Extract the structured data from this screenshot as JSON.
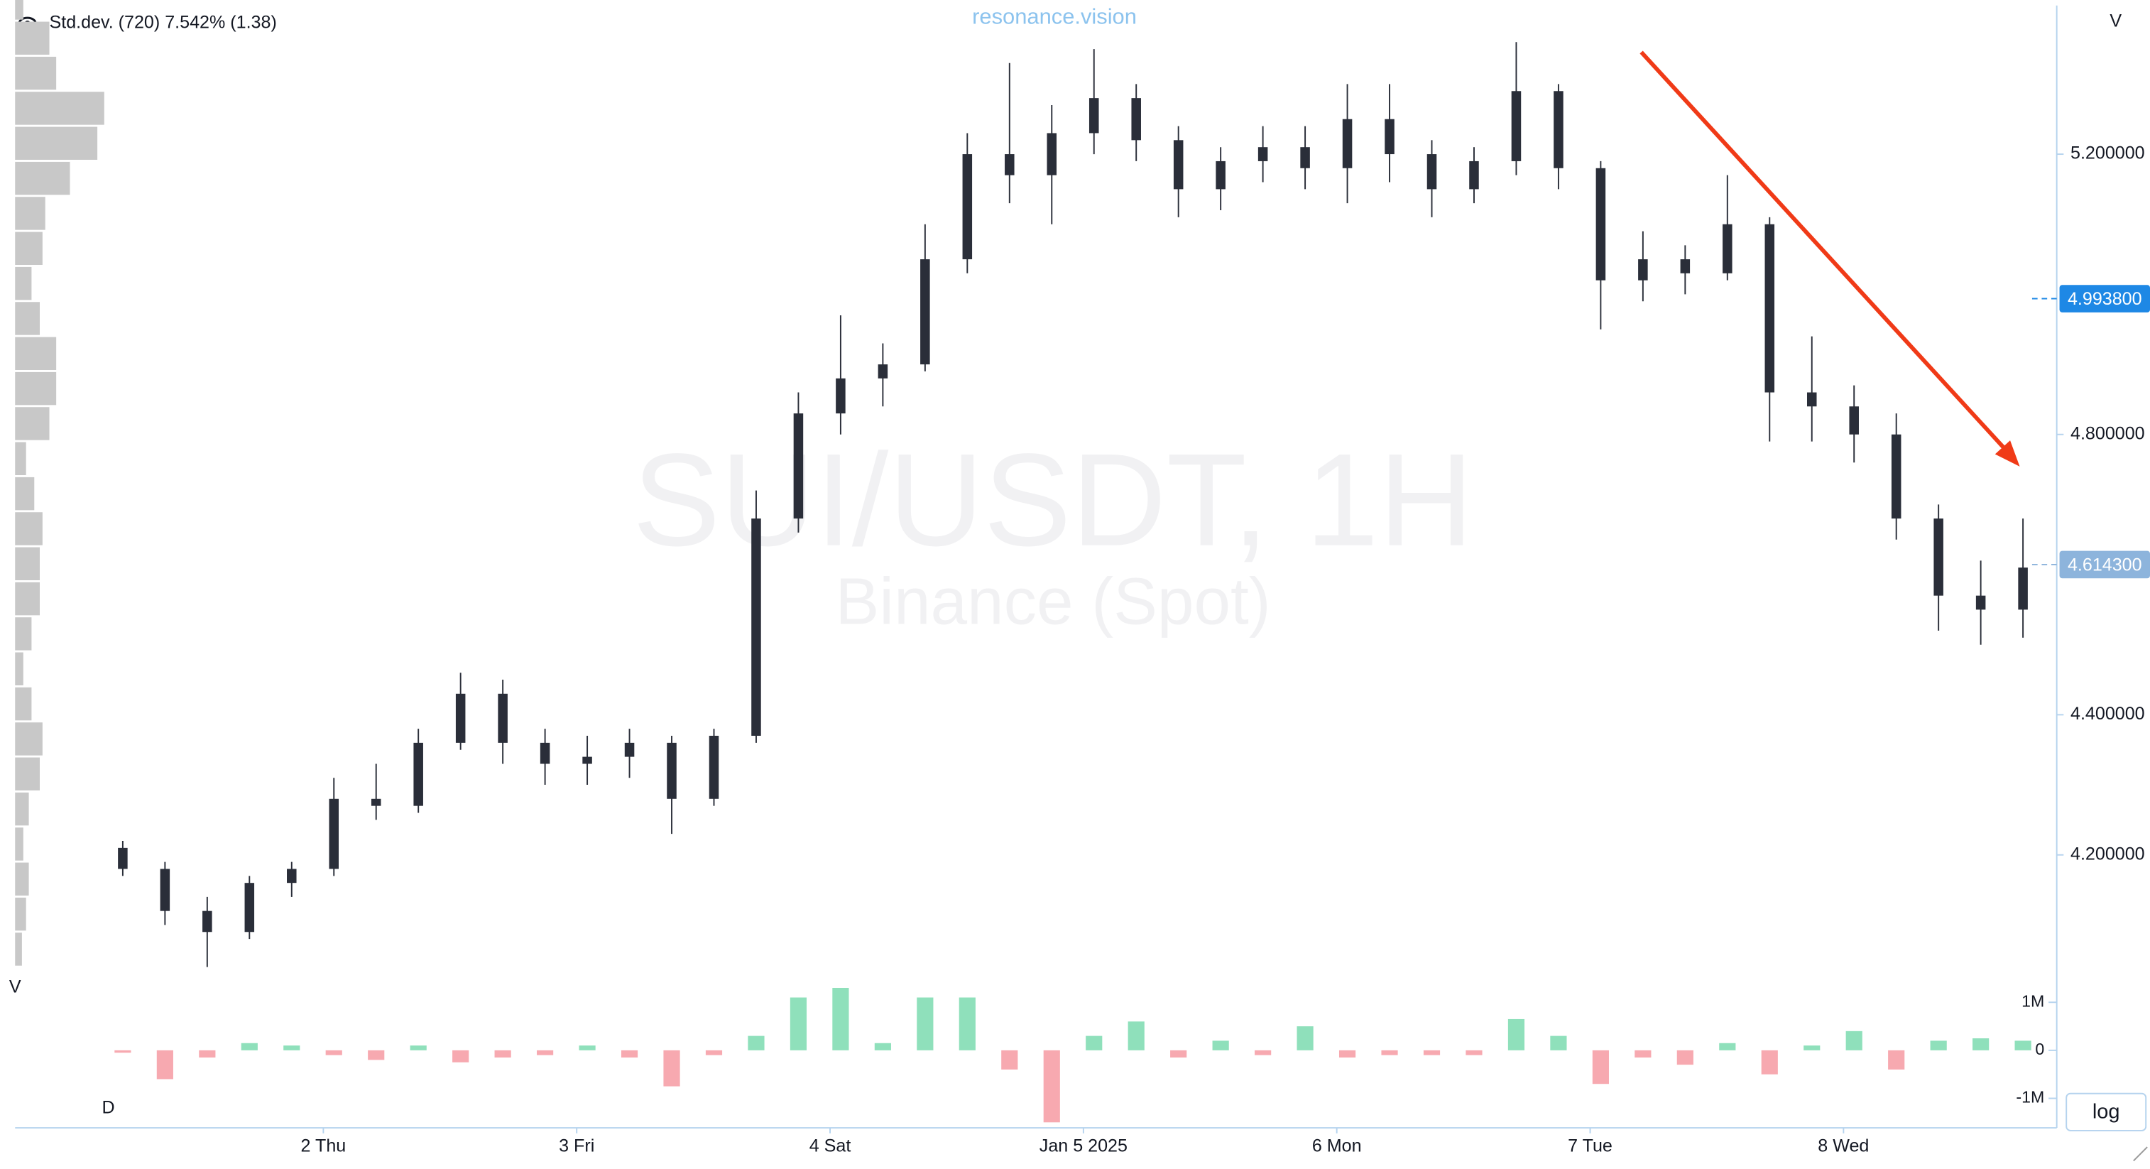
{
  "page": {
    "indicator": "Std.dev. (720) 7.542% (1.38)",
    "source": "resonance.vision",
    "volume_axis_label": "V",
    "profile_label": "V",
    "interval_label": "D",
    "scale_button": "log"
  },
  "chart_data": [
    {
      "type": "candlestick",
      "title": "SUI/USDT, 1H",
      "subtitle": "Binance (Spot)",
      "color": "#2a2e39",
      "x": [
        5,
        9,
        13,
        17,
        21,
        25,
        29,
        33,
        37,
        41,
        45,
        49,
        53,
        57,
        61,
        65,
        69,
        73,
        77,
        81,
        85,
        89,
        93,
        97,
        101,
        105,
        109,
        113,
        117,
        121,
        125,
        129,
        133,
        137,
        141,
        145,
        149,
        153,
        157,
        161,
        165,
        169,
        173,
        177,
        181,
        185
      ],
      "open": [
        4.21,
        4.18,
        4.12,
        4.09,
        4.16,
        4.18,
        4.28,
        4.27,
        4.36,
        4.43,
        4.36,
        4.33,
        4.34,
        4.36,
        4.28,
        4.37,
        4.68,
        4.83,
        4.88,
        4.9,
        5.05,
        5.2,
        5.17,
        5.23,
        5.28,
        5.22,
        5.15,
        5.19,
        5.21,
        5.18,
        5.25,
        5.2,
        5.15,
        5.19,
        5.29,
        5.18,
        5.02,
        5.05,
        5.03,
        5.1,
        4.86,
        4.84,
        4.8,
        4.68,
        4.57,
        4.55
      ],
      "high": [
        4.22,
        4.19,
        4.14,
        4.17,
        4.19,
        4.31,
        4.33,
        4.38,
        4.46,
        4.45,
        4.38,
        4.37,
        4.38,
        4.37,
        4.38,
        4.72,
        4.86,
        4.97,
        4.93,
        5.1,
        5.23,
        5.33,
        5.27,
        5.35,
        5.3,
        5.24,
        5.21,
        5.24,
        5.24,
        5.3,
        5.3,
        5.22,
        5.21,
        5.36,
        5.3,
        5.19,
        5.09,
        5.07,
        5.17,
        5.11,
        4.94,
        4.87,
        4.83,
        4.7,
        4.62,
        4.68
      ],
      "low": [
        4.17,
        4.1,
        4.04,
        4.08,
        4.14,
        4.17,
        4.25,
        4.26,
        4.35,
        4.33,
        4.3,
        4.3,
        4.31,
        4.23,
        4.27,
        4.36,
        4.66,
        4.8,
        4.84,
        4.89,
        5.03,
        5.13,
        5.1,
        5.2,
        5.19,
        5.11,
        5.12,
        5.16,
        5.15,
        5.13,
        5.16,
        5.11,
        5.13,
        5.17,
        5.15,
        4.95,
        4.99,
        5.0,
        5.02,
        4.79,
        4.79,
        4.76,
        4.65,
        4.52,
        4.5,
        4.51
      ],
      "close": [
        4.18,
        4.12,
        4.09,
        4.16,
        4.18,
        4.28,
        4.27,
        4.36,
        4.43,
        4.36,
        4.33,
        4.34,
        4.36,
        4.28,
        4.37,
        4.68,
        4.83,
        4.88,
        4.9,
        5.05,
        5.2,
        5.17,
        5.23,
        5.28,
        5.22,
        5.15,
        5.19,
        5.21,
        5.18,
        5.25,
        5.2,
        5.15,
        5.19,
        5.29,
        5.18,
        5.02,
        5.05,
        5.03,
        5.1,
        4.86,
        4.84,
        4.8,
        4.68,
        4.57,
        4.55,
        4.61
      ],
      "xlim": [
        -5.2,
        188.2
      ],
      "xticks": [
        {
          "value": 24,
          "label": "2 Thu"
        },
        {
          "value": 48,
          "label": "3 Fri"
        },
        {
          "value": 72,
          "label": "4 Sat"
        },
        {
          "value": 96,
          "label": "Jan 5 2025"
        },
        {
          "value": 120,
          "label": "6 Mon"
        },
        {
          "value": 144,
          "label": "7 Tue"
        },
        {
          "value": 168,
          "label": "8 Wed"
        }
      ],
      "ylim": [
        4.02,
        5.42
      ],
      "yticks": [
        {
          "value": 5.2,
          "label": "5.200000"
        },
        {
          "value": 4.8,
          "label": "4.800000"
        },
        {
          "value": 4.4,
          "label": "4.400000"
        },
        {
          "value": 4.2,
          "label": "4.200000"
        }
      ],
      "markers": [
        {
          "value": 4.9938,
          "label": "4.993800",
          "color": "#1e88e5"
        },
        {
          "value": 4.6143,
          "label": "4.614300",
          "color": "#8db4dc"
        }
      ]
    },
    {
      "type": "bar",
      "up_color": "#8fe0bb",
      "down_color": "#f7a9b0",
      "values": [
        -50000,
        -600000,
        -150000,
        150000,
        100000,
        -100000,
        -200000,
        100000,
        -250000,
        -150000,
        -100000,
        100000,
        -150000,
        -750000,
        -100000,
        300000,
        1100000,
        1300000,
        150000,
        1100000,
        1100000,
        -400000,
        -1500000,
        300000,
        600000,
        -150000,
        200000,
        -100000,
        500000,
        -150000,
        -100000,
        -100000,
        -100000,
        650000,
        300000,
        -700000,
        -150000,
        -300000,
        150000,
        -500000,
        100000,
        400000,
        -400000,
        200000,
        250000,
        200000
      ],
      "ylim": [
        -1500000,
        1300000
      ],
      "yticks": [
        {
          "value": 1000000,
          "label": "1M"
        },
        0,
        {
          "value": -1000000,
          "label": "-1M"
        }
      ]
    },
    {
      "type": "histogram",
      "color": "#c8c8c8",
      "bins": [
        4.04,
        4.09,
        4.14,
        4.19,
        4.24,
        4.29,
        4.34,
        4.39,
        4.44,
        4.49,
        4.54,
        4.59,
        4.64,
        4.69,
        4.74,
        4.79,
        4.84,
        4.89,
        4.94,
        4.99,
        5.04,
        5.09,
        5.14,
        5.19,
        5.24,
        5.29,
        5.34,
        5.39,
        5.44
      ],
      "values": [
        5,
        8,
        10,
        6,
        10,
        18,
        20,
        12,
        6,
        12,
        18,
        18,
        20,
        14,
        8,
        25,
        30,
        30,
        18,
        12,
        20,
        22,
        40,
        60,
        65,
        30,
        25,
        6
      ],
      "xlim": [
        0,
        70
      ],
      "ylim": [
        4.02,
        5.42
      ]
    }
  ]
}
